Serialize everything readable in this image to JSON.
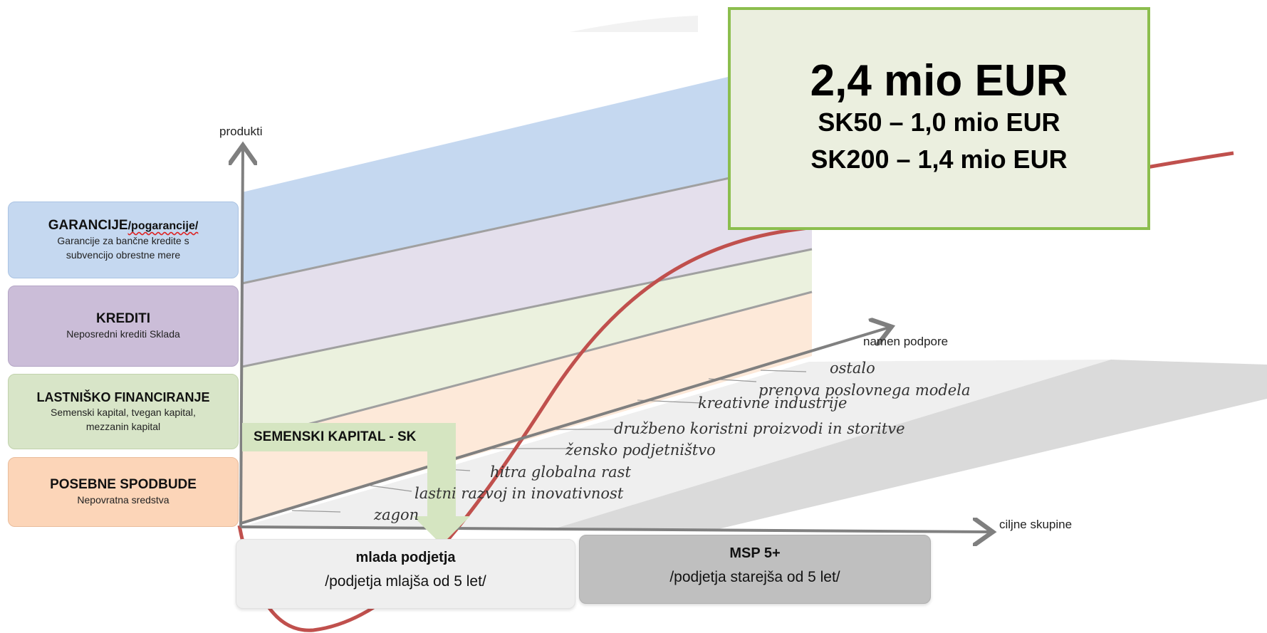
{
  "axes": {
    "y_label": "produkti",
    "x_label": "ciljne skupine",
    "z_label": "namen podpore"
  },
  "products": [
    {
      "title": "GARANCIJE",
      "title_suffix": "/pogarancije/",
      "subtitle": "Garancije za bančne kredite s subvencijo obrestne mere",
      "color": "#c5d8f0"
    },
    {
      "title": "KREDITI",
      "subtitle": "Neposredni krediti Sklada",
      "color": "#cbbdd8"
    },
    {
      "title": "LASTNIŠKO FINANCIRANJE",
      "subtitle": "Semenski kapital, tvegan kapital, mezzanin kapital",
      "color": "#d8e5c8"
    },
    {
      "title": "POSEBNE SPODBUDE",
      "subtitle": "Nepovratna sredstva",
      "color": "#fcd5b8"
    }
  ],
  "seed_capital_label": "SEMENSKI KAPITAL - SK",
  "highlight": {
    "amount": "2,4 mio EUR",
    "line1": "SK50 – 1,0 mio EUR",
    "line2": "SK200 – 1,4 mio EUR",
    "border_color": "#8cbe4e"
  },
  "target_groups": [
    {
      "title": "mlada podjetja",
      "subtitle": "/podjetja mlajša od 5 let/"
    },
    {
      "title": "MSP 5+",
      "subtitle": "/podjetja starejša od 5 let/"
    }
  ],
  "purposes": [
    "zagon",
    "lastni razvoj in inovativnost",
    "hitra globalna rast",
    "žensko podjetništvo",
    "družbeno koristni proizvodi in storitve",
    "kreativne industrije",
    "prenova poslovnega modela",
    "ostalo"
  ],
  "curve_color": "#c0504d"
}
